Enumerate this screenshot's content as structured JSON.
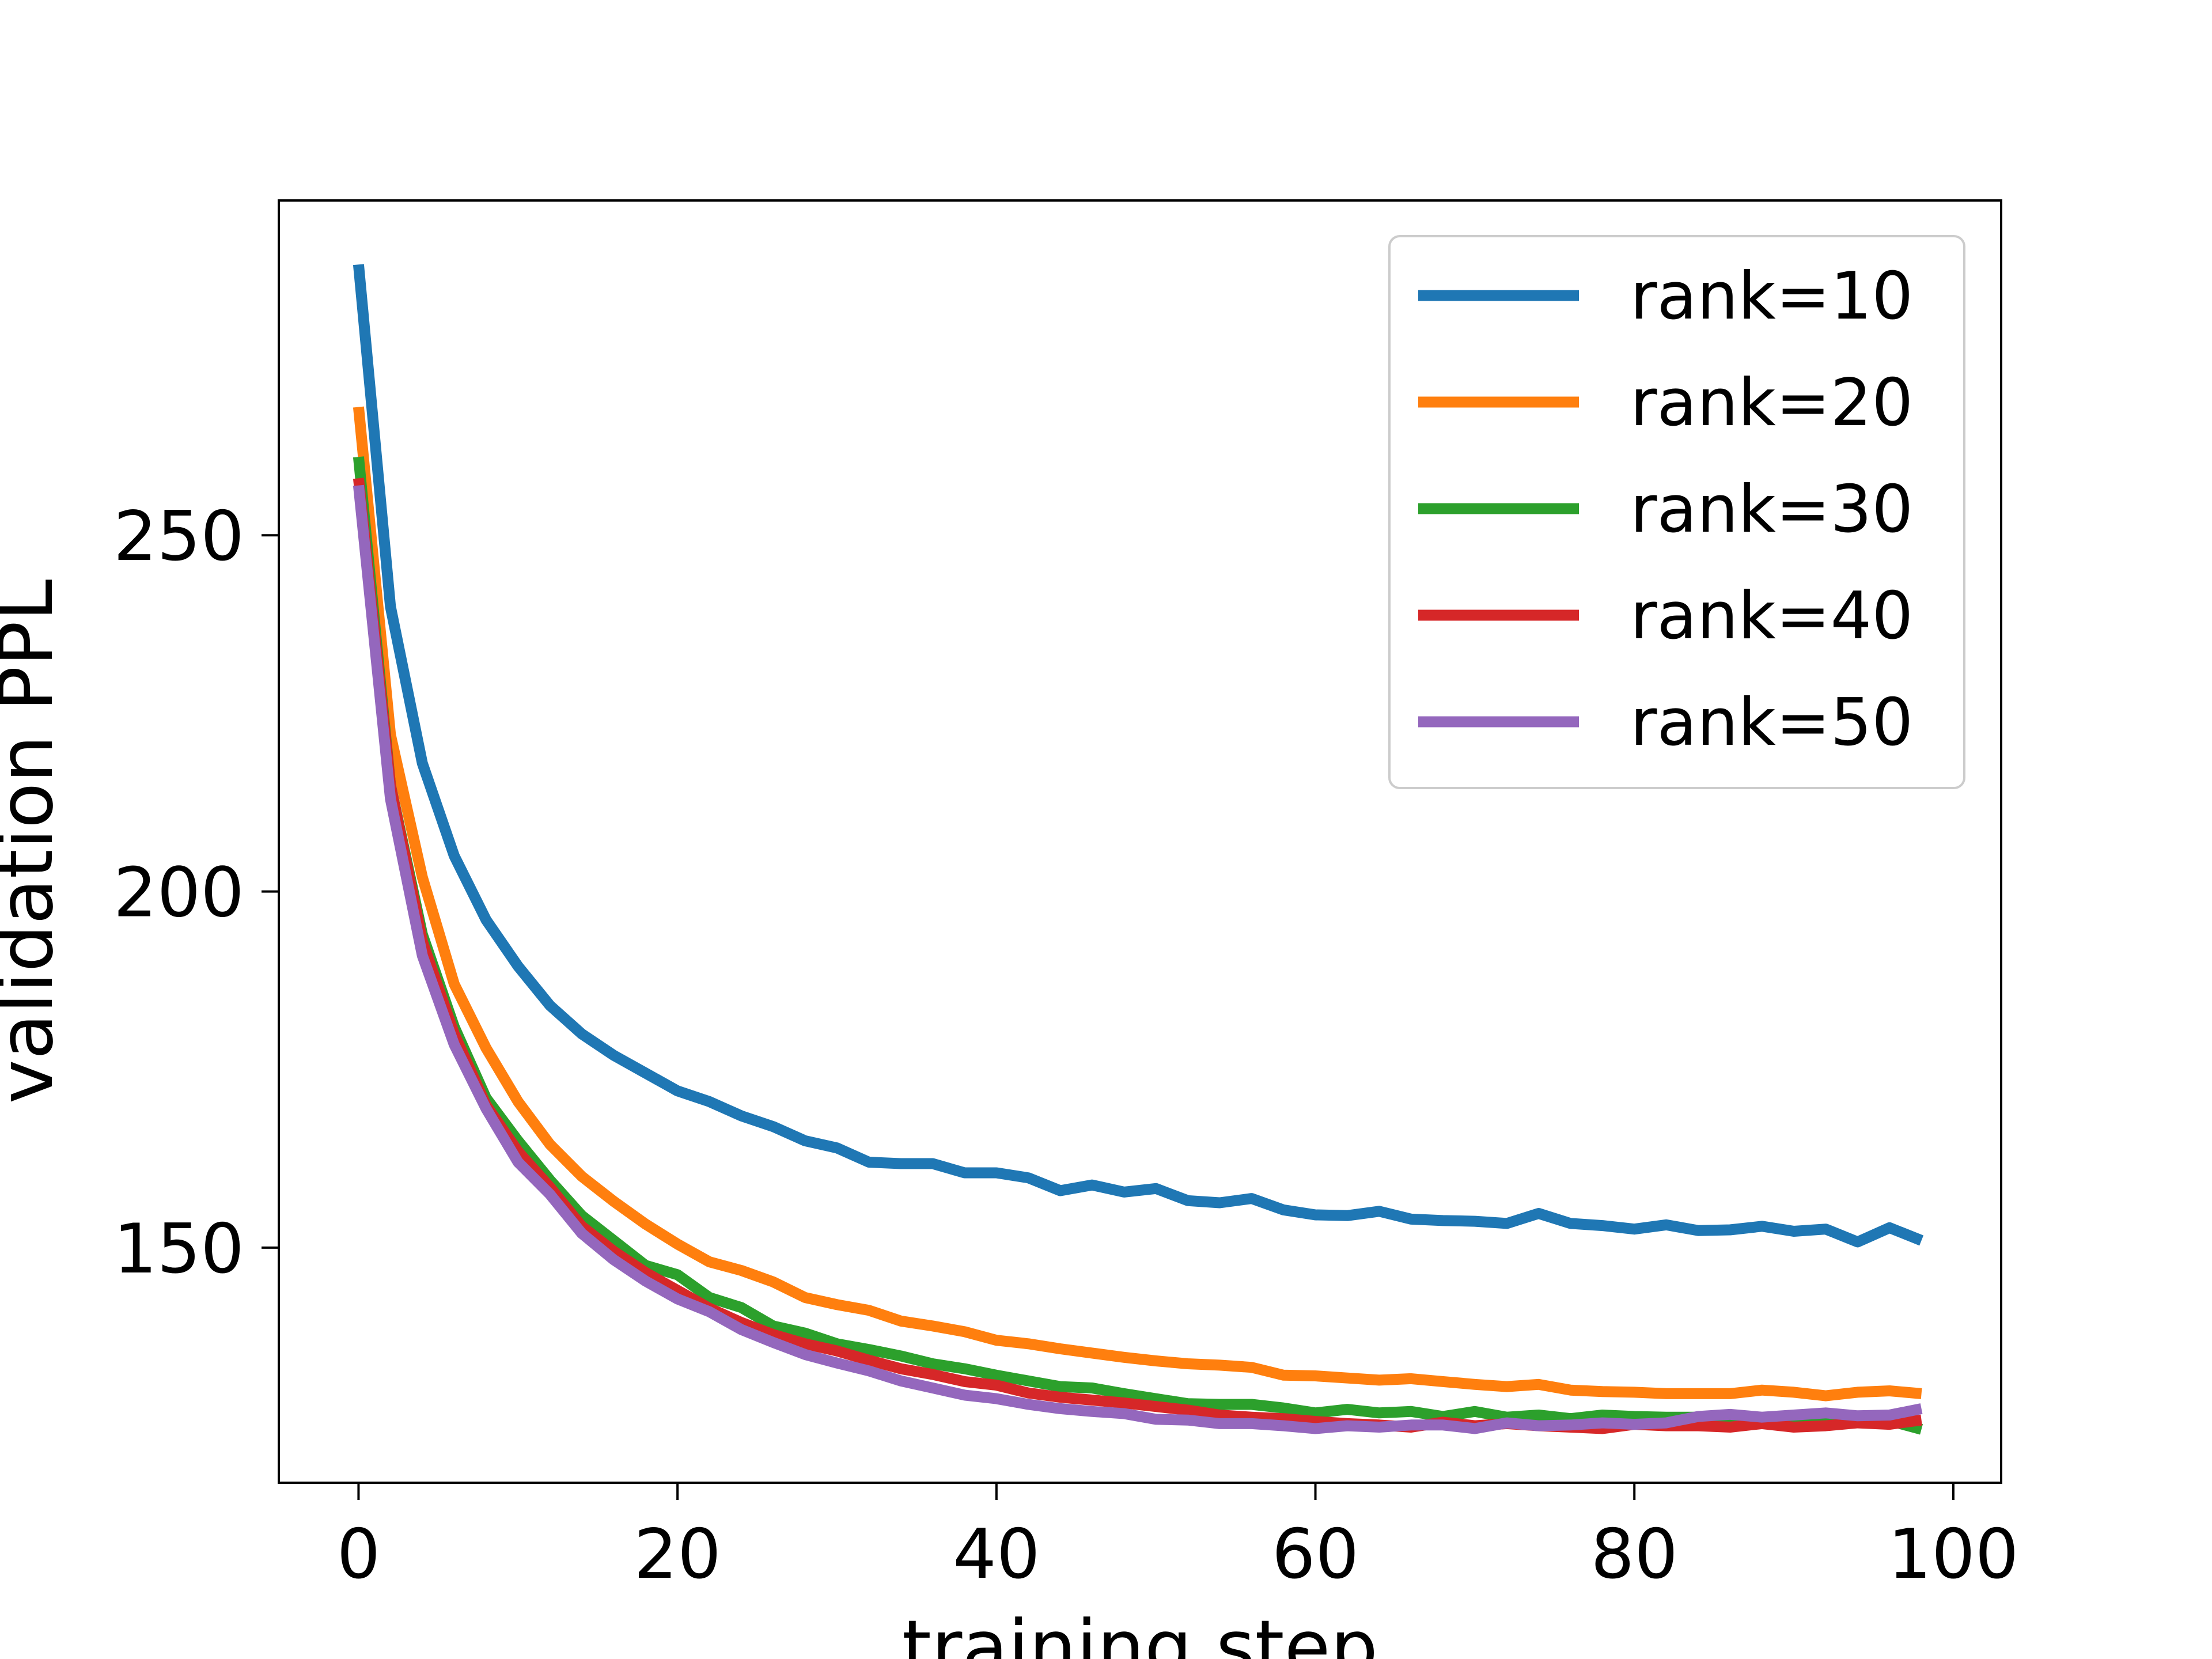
{
  "chart_data": {
    "type": "line",
    "xlabel": "training step",
    "ylabel": "validation PPL",
    "xlim": [
      -5,
      103
    ],
    "ylim": [
      117,
      297
    ],
    "xticks": [
      0,
      20,
      40,
      60,
      80,
      100
    ],
    "yticks": [
      150,
      200,
      250
    ],
    "grid": false,
    "legend_position": "top-right",
    "x": [
      0,
      2,
      4,
      6,
      8,
      10,
      12,
      14,
      16,
      18,
      20,
      22,
      24,
      26,
      28,
      30,
      32,
      34,
      36,
      38,
      40,
      42,
      44,
      46,
      48,
      50,
      52,
      54,
      56,
      58,
      60,
      62,
      64,
      66,
      68,
      70,
      72,
      74,
      76,
      78,
      80,
      82,
      84,
      86,
      88,
      90,
      92,
      94,
      96,
      98
    ],
    "series": [
      {
        "name": "rank=10",
        "color": "#1f77b4",
        "values": [
          288,
          240,
          218,
          205,
          196,
          189.5,
          184,
          180,
          177,
          174.5,
          172,
          170.5,
          168.5,
          167,
          165,
          164,
          162,
          161.8,
          161.8,
          160.5,
          160.5,
          159.8,
          158,
          158.8,
          157.8,
          158.3,
          156.6,
          156.3,
          156.9,
          155.3,
          154.6,
          154.5,
          155.1,
          154,
          153.8,
          153.7,
          153.4,
          154.8,
          153.4,
          153.1,
          152.6,
          153.2,
          152.4,
          152.5,
          153,
          152.3,
          152.6,
          150.8,
          152.8,
          151
        ]
      },
      {
        "name": "rank=20",
        "color": "#ff7f0e",
        "values": [
          268,
          222,
          202,
          187,
          178,
          170.5,
          164.5,
          160,
          156.5,
          153.3,
          150.5,
          148,
          146.8,
          145.2,
          143,
          142,
          141.2,
          139.7,
          139,
          138.2,
          137,
          136.5,
          135.8,
          135.2,
          134.6,
          134.1,
          133.7,
          133.5,
          133.2,
          132.1,
          132,
          131.7,
          131.4,
          131.6,
          131.2,
          130.8,
          130.5,
          130.8,
          130,
          129.8,
          129.7,
          129.5,
          129.5,
          129.5,
          130,
          129.7,
          129.2,
          129.7,
          129.9,
          129.5
        ]
      },
      {
        "name": "rank=30",
        "color": "#2ca02c",
        "values": [
          261,
          215,
          194,
          181,
          171,
          165,
          159.5,
          154.5,
          151,
          147.5,
          146.2,
          143,
          141.6,
          139,
          138,
          136.5,
          135.7,
          134.8,
          133.7,
          133,
          132.1,
          131.3,
          130.5,
          130.3,
          129.5,
          128.8,
          128.1,
          128,
          128,
          127.5,
          126.8,
          127.3,
          126.8,
          127,
          126.3,
          127,
          126.2,
          126.5,
          126,
          126.5,
          126.3,
          126.2,
          126.2,
          126,
          126,
          125.5,
          125.6,
          125.5,
          125.7,
          124.5
        ]
      },
      {
        "name": "rank=40",
        "color": "#d62728",
        "values": [
          258,
          215,
          193,
          180,
          170,
          163.5,
          158.5,
          153,
          149.5,
          146.5,
          144,
          141.5,
          139.5,
          137.8,
          136.5,
          135.5,
          134.2,
          133,
          132.2,
          131.2,
          130.7,
          129.6,
          129,
          128.6,
          128.2,
          127.7,
          127.2,
          126.5,
          126.2,
          126,
          125.6,
          125.3,
          125.1,
          124.8,
          125.5,
          125,
          125.3,
          125,
          124.8,
          124.6,
          125.2,
          125,
          125,
          124.8,
          125.3,
          124.8,
          125,
          125.4,
          125.2,
          125.8
        ]
      },
      {
        "name": "rank=50",
        "color": "#9467bd",
        "values": [
          257,
          213,
          191,
          178.5,
          169.5,
          162,
          157.5,
          152,
          148.3,
          145.3,
          142.8,
          141,
          138.5,
          136.7,
          135,
          133.8,
          132.7,
          131.3,
          130.3,
          129.3,
          128.8,
          128,
          127.4,
          127,
          126.7,
          125.9,
          125.8,
          125.3,
          125.3,
          125,
          124.6,
          125,
          124.8,
          125.1,
          125.1,
          124.6,
          125.4,
          125,
          125.1,
          125.4,
          125.2,
          125.4,
          126.3,
          126.6,
          126.2,
          126.5,
          126.8,
          126.4,
          126.5,
          127.4
        ]
      }
    ]
  }
}
